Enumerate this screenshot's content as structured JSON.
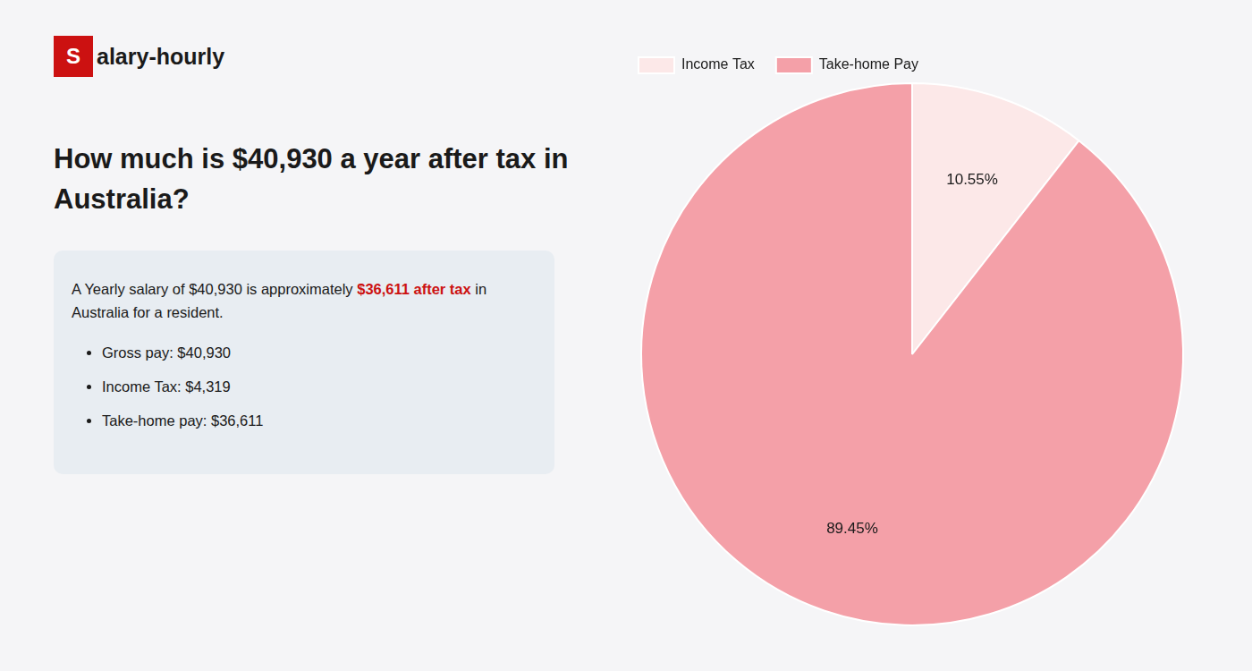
{
  "chart_data": {
    "type": "pie",
    "title": [
      "How much is $40,930 a year after tax in",
      "Australia?"
    ],
    "annotations": [
      {
        "text": "S",
        "color": "#cc1111"
      },
      {
        "text": "alary-hourly"
      },
      {
        "text": "A Yearly salary of $40,930 is approximately "
      },
      {
        "text": "$36,611 after tax",
        "color": "#cc1111"
      },
      {
        "text": " in"
      },
      {
        "text": "Australia for a resident."
      },
      {
        "text": "Gross pay: $40,930"
      },
      {
        "text": "Income Tax: $4,319"
      },
      {
        "text": "Take-home pay: $36,611"
      }
    ],
    "categories": [
      "Income Tax",
      "Take-home Pay"
    ],
    "values": [
      10.55,
      89.45
    ],
    "value_labels": [
      "10.55%",
      "89.45%"
    ],
    "colors": [
      "#fce8e8",
      "#f4a0a8"
    ],
    "data_labels": true,
    "legend": "top"
  }
}
